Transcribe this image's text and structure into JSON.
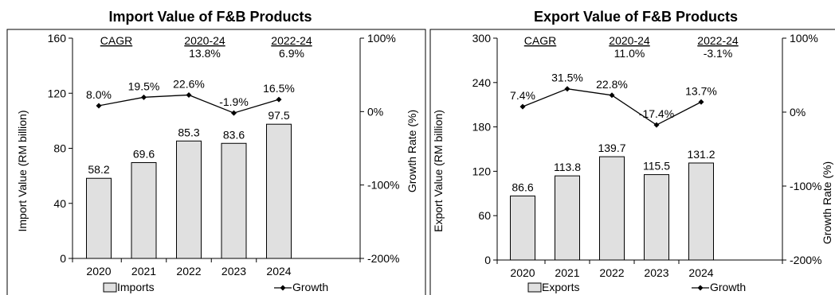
{
  "chart_data": [
    {
      "type": "bar",
      "title": "Import Value of F&B Products",
      "categories": [
        "2020",
        "2021",
        "2022",
        "2023",
        "2024"
      ],
      "xlabel": "",
      "ylabel": "Import Value (RM billion)",
      "y2label": "Growth Rate (%)",
      "ylim": [
        0,
        160
      ],
      "yticks": [
        0,
        40,
        80,
        120,
        160
      ],
      "y2lim": [
        -200,
        100
      ],
      "y2ticks": [
        "-200%",
        "-100%",
        "0%",
        "100%"
      ],
      "y2tick_values": [
        -200,
        -100,
        0,
        100
      ],
      "series": [
        {
          "name": "Imports",
          "type": "bar",
          "values": [
            58.2,
            69.6,
            85.3,
            83.6,
            97.5
          ],
          "labels": [
            "58.2",
            "69.6",
            "85.3",
            "83.6",
            "97.5"
          ]
        },
        {
          "name": "Growth",
          "type": "line",
          "axis": "secondary",
          "values": [
            8.0,
            19.5,
            22.6,
            -1.9,
            16.5
          ],
          "labels": [
            "8.0%",
            "19.5%",
            "22.6%",
            "-1.9%",
            "16.5%"
          ]
        }
      ],
      "cagr": {
        "label": "CAGR",
        "p1": "2020-24",
        "v1": "13.8%",
        "p2": "2022-24",
        "v2": "6.9%"
      },
      "legend": "bottom",
      "grid": false
    },
    {
      "type": "bar",
      "title": "Export Value of F&B Products",
      "categories": [
        "2020",
        "2021",
        "2022",
        "2023",
        "2024"
      ],
      "xlabel": "",
      "ylabel": "Export Value (RM billion)",
      "y2label": "Growth Rate (%)",
      "ylim": [
        0,
        300
      ],
      "yticks": [
        0,
        60,
        120,
        180,
        240,
        300
      ],
      "y2lim": [
        -200,
        100
      ],
      "y2ticks": [
        "-200%",
        "-100%",
        "0%",
        "100%"
      ],
      "y2tick_values": [
        -200,
        -100,
        0,
        100
      ],
      "series": [
        {
          "name": "Exports",
          "type": "bar",
          "values": [
            86.6,
            113.8,
            139.7,
            115.5,
            131.2
          ],
          "labels": [
            "86.6",
            "113.8",
            "139.7",
            "115.5",
            "131.2"
          ]
        },
        {
          "name": "Growth",
          "type": "line",
          "axis": "secondary",
          "values": [
            7.4,
            31.5,
            22.8,
            -17.4,
            13.7
          ],
          "labels": [
            "7.4%",
            "31.5%",
            "22.8%",
            "-17.4%",
            "13.7%"
          ]
        }
      ],
      "cagr": {
        "label": "CAGR",
        "p1": "2020-24",
        "v1": "11.0%",
        "p2": "2022-24",
        "v2": "-3.1%"
      },
      "legend": "bottom",
      "grid": false
    }
  ],
  "colors": {
    "bar_fill": "#e0e0e0",
    "bar_stroke": "#000000",
    "line": "#000000"
  }
}
